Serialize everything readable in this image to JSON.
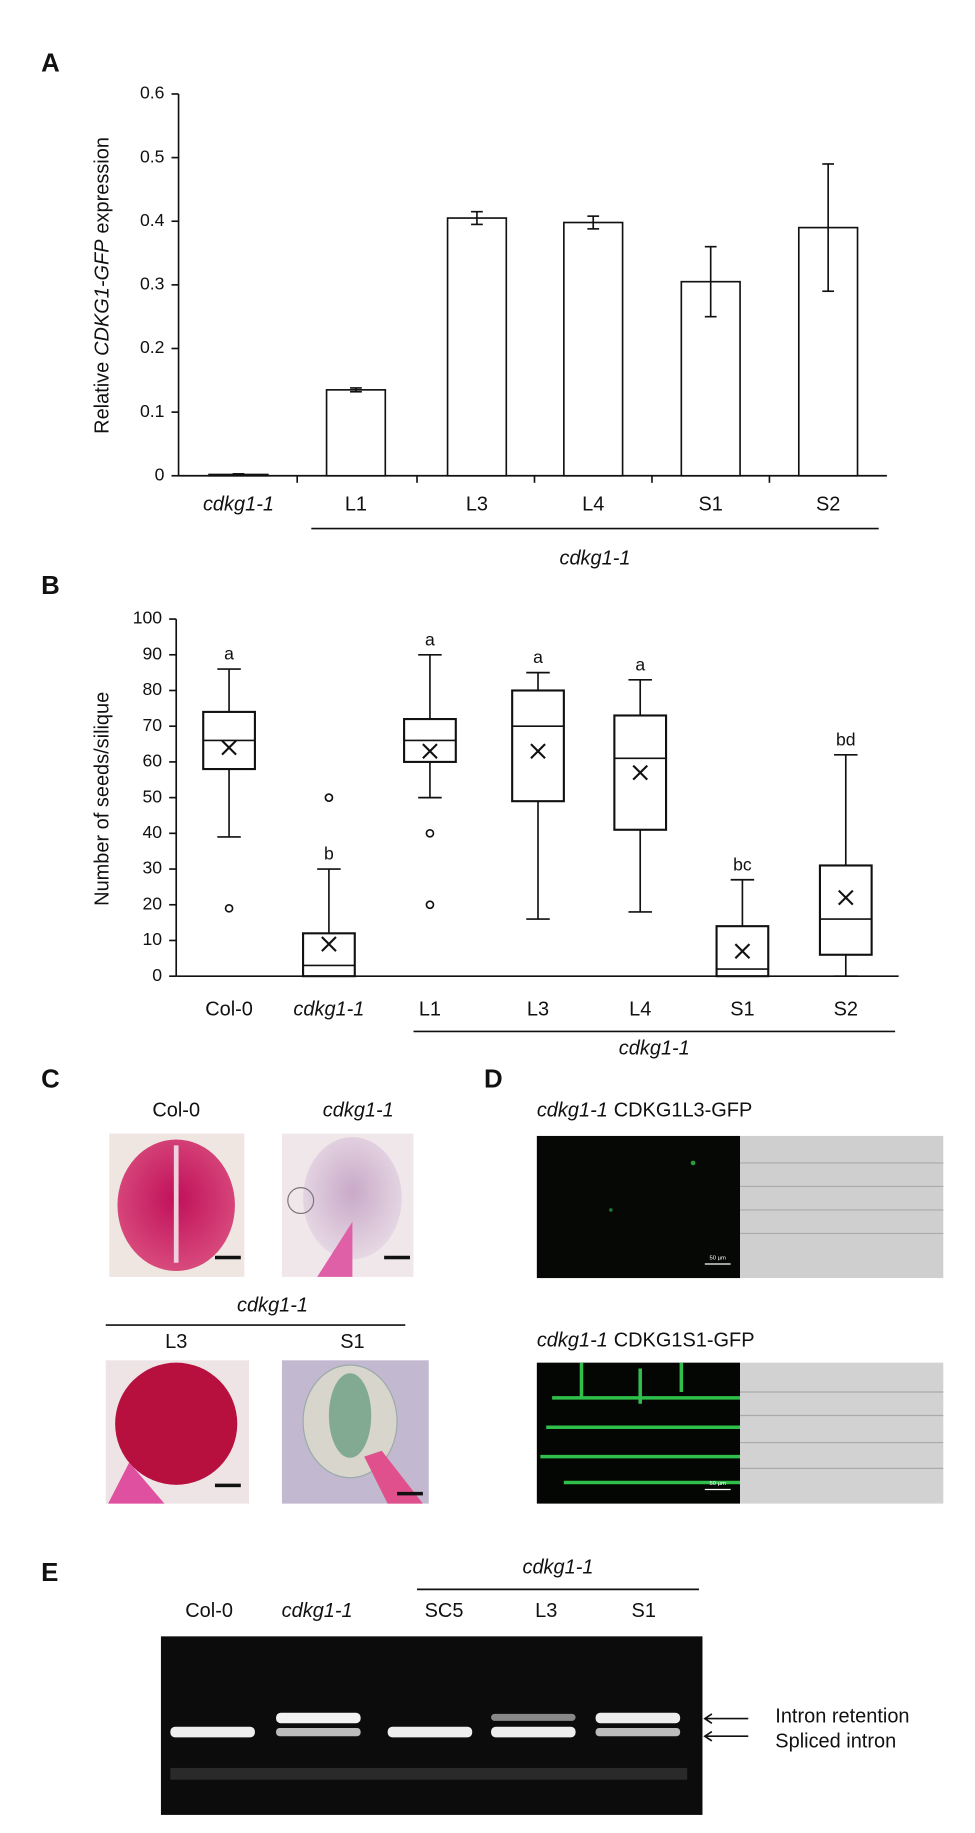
{
  "panels": [
    "A",
    "B",
    "C",
    "D",
    "E"
  ],
  "chart_data": [
    {
      "type": "bar",
      "ylabel": [
        "Relative",
        "CDKG1-GFP",
        "expression"
      ],
      "categories": [
        "cdkg1-1",
        "L1",
        "L3",
        "L4",
        "S1",
        "S2"
      ],
      "category_italic": [
        true,
        false,
        false,
        false,
        false,
        false
      ],
      "group_label": "cdkg1-1",
      "values": [
        0.002,
        0.135,
        0.405,
        0.398,
        0.305,
        0.39
      ],
      "errors": [
        0.001,
        0.003,
        0.01,
        0.01,
        0.055,
        0.1
      ],
      "color": "#ffffff",
      "ylim": [
        0,
        0.6
      ],
      "yticks": [
        0,
        0.1,
        0.2,
        0.3,
        0.4,
        0.5,
        0.6
      ]
    },
    {
      "type": "box",
      "ylabel": "Number of seeds/silique",
      "categories": [
        "Col-0",
        "cdkg1-1",
        "L1",
        "L3",
        "L4",
        "S1",
        "S2"
      ],
      "category_italic": [
        false,
        true,
        false,
        false,
        false,
        false,
        false
      ],
      "group_label": "cdkg1-1",
      "min": [
        39,
        0,
        50,
        16,
        18,
        0,
        0
      ],
      "q1": [
        58,
        0,
        60,
        49,
        41,
        0,
        6
      ],
      "median": [
        66,
        3,
        66,
        70,
        61,
        2,
        16
      ],
      "q3": [
        74,
        12,
        72,
        80,
        73,
        14,
        31
      ],
      "max": [
        86,
        30,
        90,
        85,
        83,
        27,
        62
      ],
      "mean": [
        64,
        9,
        63,
        63,
        57,
        7,
        22
      ],
      "outliers": [
        [
          19
        ],
        [
          50
        ],
        [
          40,
          20
        ],
        [],
        [],
        [],
        []
      ],
      "letters": [
        "a",
        "b",
        "a",
        "a",
        "a",
        "bc",
        "bd"
      ],
      "ylim": [
        0,
        100
      ],
      "yticks": [
        0,
        10,
        20,
        30,
        40,
        50,
        60,
        70,
        80,
        90,
        100
      ]
    }
  ],
  "panel_c": {
    "labels": [
      "Col-0",
      "cdkg1-1",
      "L3",
      "S1"
    ],
    "group_label": "cdkg1-1"
  },
  "panel_d": {
    "rows": [
      {
        "genotype": "cdkg1-1",
        "construct": "CDKG1L3-GFP",
        "scale": "50 µm"
      },
      {
        "genotype": "cdkg1-1",
        "construct": "CDKG1S1-GFP",
        "scale": "50 µm"
      }
    ]
  },
  "panel_e": {
    "lanes": [
      "Col-0",
      "cdkg1-1",
      "SC5",
      "L3",
      "S1"
    ],
    "group_label": "cdkg1-1",
    "bands": [
      "Intron retention",
      "Spliced intron"
    ]
  }
}
